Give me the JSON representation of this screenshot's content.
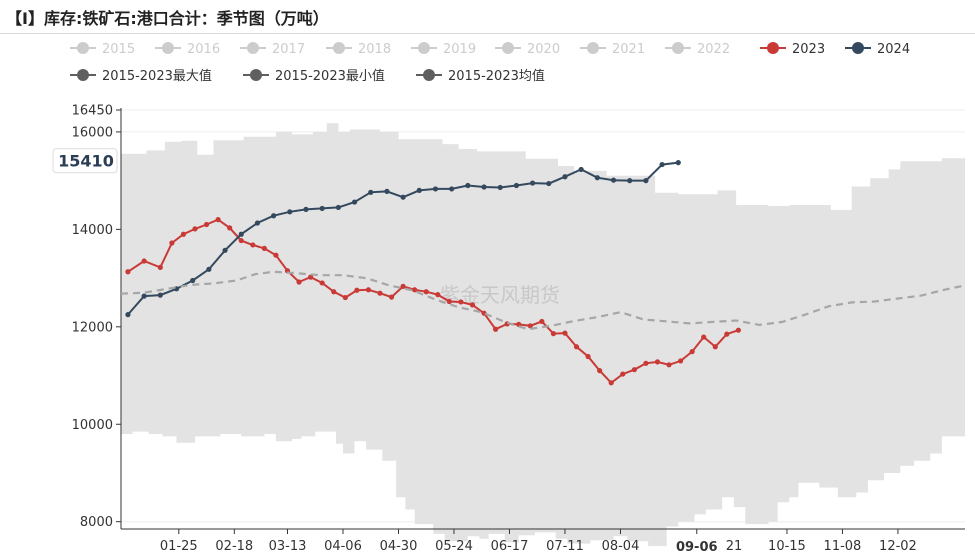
{
  "title": "【I】库存:铁矿石:港口合计：季节图（万吨）",
  "watermark": "紫金天风期货",
  "colors": {
    "band": "#e3e3e3",
    "y2023": "#c93a36",
    "y2024": "#34495e",
    "avg": "#a6a6a6",
    "legend_inactive": "#cccccc",
    "legend_stat": "#5f5f5f",
    "tooltip_text": "#2b3d55"
  },
  "chart_data": {
    "type": "line",
    "title": "【I】库存:铁矿石:港口合计：季节图（万吨）",
    "y_ticks": [
      8000,
      10000,
      12000,
      14000,
      16000,
      16450
    ],
    "ylim": [
      7850,
      16450
    ],
    "x_range_days": [
      0,
      365
    ],
    "x_ticks": [
      "01-25",
      "02-18",
      "03-13",
      "04-06",
      "04-30",
      "05-24",
      "06-17",
      "07-11",
      "08-04",
      "09-06",
      "10-15",
      "11-08",
      "12-02"
    ],
    "x_tick_days": [
      25,
      49,
      72,
      96,
      120,
      144,
      168,
      192,
      216,
      249,
      288,
      312,
      336
    ],
    "highlighted_x": "09-06",
    "partial_tick": "21",
    "partial_tick_day": 265,
    "y_value_marker": 15410,
    "legend": [
      {
        "label": "2015",
        "state": "inactive"
      },
      {
        "label": "2016",
        "state": "inactive"
      },
      {
        "label": "2017",
        "state": "inactive"
      },
      {
        "label": "2018",
        "state": "inactive"
      },
      {
        "label": "2019",
        "state": "inactive"
      },
      {
        "label": "2020",
        "state": "inactive"
      },
      {
        "label": "2021",
        "state": "inactive"
      },
      {
        "label": "2022",
        "state": "inactive"
      },
      {
        "label": "2023",
        "state": "active"
      },
      {
        "label": "2024",
        "state": "active"
      },
      {
        "label": "2015-2023最大值",
        "state": "stat"
      },
      {
        "label": "2015-2023最小值",
        "state": "stat"
      },
      {
        "label": "2015-2023均值",
        "state": "stat"
      }
    ],
    "band_max": [
      [
        0,
        15550
      ],
      [
        11,
        15550
      ],
      [
        11,
        15620
      ],
      [
        19,
        15620
      ],
      [
        19,
        15800
      ],
      [
        26,
        15800
      ],
      [
        26,
        15820
      ],
      [
        33,
        15820
      ],
      [
        33,
        15530
      ],
      [
        40,
        15530
      ],
      [
        40,
        15830
      ],
      [
        53,
        15830
      ],
      [
        53,
        15900
      ],
      [
        67,
        15900
      ],
      [
        67,
        16000
      ],
      [
        74,
        16000
      ],
      [
        74,
        15950
      ],
      [
        83,
        15950
      ],
      [
        83,
        16000
      ],
      [
        89,
        16000
      ],
      [
        89,
        16180
      ],
      [
        94,
        16180
      ],
      [
        94,
        16000
      ],
      [
        99,
        16000
      ],
      [
        99,
        16050
      ],
      [
        112,
        16050
      ],
      [
        112,
        16000
      ],
      [
        120,
        16000
      ],
      [
        120,
        15850
      ],
      [
        139,
        15850
      ],
      [
        139,
        15750
      ],
      [
        146,
        15750
      ],
      [
        146,
        15650
      ],
      [
        154,
        15650
      ],
      [
        154,
        15600
      ],
      [
        175,
        15600
      ],
      [
        175,
        15450
      ],
      [
        189,
        15450
      ],
      [
        189,
        15300
      ],
      [
        196,
        15300
      ],
      [
        196,
        15200
      ],
      [
        210,
        15200
      ],
      [
        210,
        15100
      ],
      [
        231,
        15100
      ],
      [
        231,
        14750
      ],
      [
        241,
        14750
      ],
      [
        241,
        14720
      ],
      [
        258,
        14720
      ],
      [
        258,
        14800
      ],
      [
        266,
        14800
      ],
      [
        266,
        14500
      ],
      [
        280,
        14500
      ],
      [
        280,
        14480
      ],
      [
        289,
        14480
      ],
      [
        289,
        14500
      ],
      [
        307,
        14500
      ],
      [
        307,
        14400
      ],
      [
        316,
        14400
      ],
      [
        316,
        14880
      ],
      [
        324,
        14880
      ],
      [
        324,
        15050
      ],
      [
        332,
        15050
      ],
      [
        332,
        15230
      ],
      [
        337,
        15230
      ],
      [
        337,
        15400
      ],
      [
        355,
        15400
      ],
      [
        355,
        15460
      ],
      [
        365,
        15460
      ]
    ],
    "band_min": [
      [
        0,
        9800
      ],
      [
        5,
        9800
      ],
      [
        5,
        9850
      ],
      [
        12,
        9850
      ],
      [
        12,
        9800
      ],
      [
        18,
        9800
      ],
      [
        18,
        9750
      ],
      [
        24,
        9750
      ],
      [
        24,
        9620
      ],
      [
        32,
        9620
      ],
      [
        32,
        9750
      ],
      [
        43,
        9750
      ],
      [
        43,
        9800
      ],
      [
        52,
        9800
      ],
      [
        52,
        9750
      ],
      [
        62,
        9750
      ],
      [
        62,
        9800
      ],
      [
        67,
        9800
      ],
      [
        67,
        9650
      ],
      [
        74,
        9650
      ],
      [
        74,
        9700
      ],
      [
        78,
        9700
      ],
      [
        78,
        9750
      ],
      [
        84,
        9750
      ],
      [
        84,
        9850
      ],
      [
        93,
        9850
      ],
      [
        93,
        9600
      ],
      [
        96,
        9600
      ],
      [
        96,
        9400
      ],
      [
        101,
        9400
      ],
      [
        101,
        9650
      ],
      [
        106,
        9650
      ],
      [
        106,
        9480
      ],
      [
        113,
        9480
      ],
      [
        113,
        9250
      ],
      [
        119,
        9250
      ],
      [
        119,
        8500
      ],
      [
        123,
        8500
      ],
      [
        123,
        8250
      ],
      [
        127,
        8250
      ],
      [
        127,
        7950
      ],
      [
        135,
        7950
      ],
      [
        135,
        7750
      ],
      [
        140,
        7750
      ],
      [
        140,
        7600
      ],
      [
        150,
        7600
      ],
      [
        150,
        7700
      ],
      [
        155,
        7700
      ],
      [
        155,
        7650
      ],
      [
        159,
        7650
      ],
      [
        159,
        7750
      ],
      [
        166,
        7750
      ],
      [
        166,
        7580
      ],
      [
        172,
        7580
      ],
      [
        172,
        7720
      ],
      [
        179,
        7720
      ],
      [
        179,
        7780
      ],
      [
        188,
        7780
      ],
      [
        188,
        7650
      ],
      [
        193,
        7650
      ],
      [
        193,
        7550
      ],
      [
        203,
        7550
      ],
      [
        203,
        7620
      ],
      [
        213,
        7620
      ],
      [
        213,
        7700
      ],
      [
        219,
        7700
      ],
      [
        219,
        7600
      ],
      [
        228,
        7600
      ],
      [
        228,
        7500
      ],
      [
        236,
        7500
      ],
      [
        236,
        7900
      ],
      [
        241,
        7900
      ],
      [
        241,
        8000
      ],
      [
        248,
        8000
      ],
      [
        248,
        8150
      ],
      [
        253,
        8150
      ],
      [
        253,
        8250
      ],
      [
        260,
        8250
      ],
      [
        260,
        8500
      ],
      [
        265,
        8500
      ],
      [
        265,
        8300
      ],
      [
        270,
        8300
      ],
      [
        270,
        7950
      ],
      [
        280,
        7950
      ],
      [
        280,
        8000
      ],
      [
        284,
        8000
      ],
      [
        284,
        8400
      ],
      [
        289,
        8400
      ],
      [
        289,
        8500
      ],
      [
        293,
        8500
      ],
      [
        293,
        8800
      ],
      [
        302,
        8800
      ],
      [
        302,
        8700
      ],
      [
        310,
        8700
      ],
      [
        310,
        8500
      ],
      [
        318,
        8500
      ],
      [
        318,
        8600
      ],
      [
        323,
        8600
      ],
      [
        323,
        8850
      ],
      [
        330,
        8850
      ],
      [
        330,
        9000
      ],
      [
        337,
        9000
      ],
      [
        337,
        9150
      ],
      [
        343,
        9150
      ],
      [
        343,
        9250
      ],
      [
        350,
        9250
      ],
      [
        350,
        9400
      ],
      [
        355,
        9400
      ],
      [
        355,
        9750
      ],
      [
        365,
        9750
      ]
    ],
    "series": [
      {
        "name": "2023",
        "points": [
          [
            3,
            13130
          ],
          [
            10,
            13350
          ],
          [
            17,
            13220
          ],
          [
            22,
            13720
          ],
          [
            27,
            13900
          ],
          [
            32,
            14010
          ],
          [
            37,
            14100
          ],
          [
            42,
            14200
          ],
          [
            47,
            14030
          ],
          [
            52,
            13770
          ],
          [
            57,
            13680
          ],
          [
            62,
            13610
          ],
          [
            67,
            13470
          ],
          [
            72,
            13150
          ],
          [
            77,
            12920
          ],
          [
            82,
            13020
          ],
          [
            87,
            12900
          ],
          [
            92,
            12720
          ],
          [
            97,
            12600
          ],
          [
            102,
            12750
          ],
          [
            107,
            12760
          ],
          [
            112,
            12690
          ],
          [
            117,
            12610
          ],
          [
            122,
            12830
          ],
          [
            127,
            12760
          ],
          [
            132,
            12720
          ],
          [
            137,
            12660
          ],
          [
            142,
            12520
          ],
          [
            147,
            12510
          ],
          [
            152,
            12450
          ],
          [
            157,
            12280
          ],
          [
            162,
            11950
          ],
          [
            167,
            12060
          ],
          [
            172,
            12050
          ],
          [
            177,
            12020
          ],
          [
            182,
            12110
          ],
          [
            187,
            11860
          ],
          [
            192,
            11870
          ],
          [
            197,
            11590
          ],
          [
            202,
            11390
          ],
          [
            207,
            11100
          ],
          [
            212,
            10850
          ],
          [
            217,
            11030
          ],
          [
            222,
            11120
          ],
          [
            227,
            11250
          ],
          [
            232,
            11280
          ],
          [
            237,
            11220
          ],
          [
            242,
            11300
          ],
          [
            247,
            11490
          ],
          [
            252,
            11790
          ],
          [
            257,
            11590
          ],
          [
            262,
            11850
          ],
          [
            267,
            11930
          ]
        ]
      },
      {
        "name": "2024",
        "points": [
          [
            3,
            12250
          ],
          [
            10,
            12630
          ],
          [
            17,
            12650
          ],
          [
            24,
            12780
          ],
          [
            31,
            12950
          ],
          [
            38,
            13180
          ],
          [
            45,
            13570
          ],
          [
            52,
            13900
          ],
          [
            59,
            14130
          ],
          [
            66,
            14280
          ],
          [
            73,
            14360
          ],
          [
            80,
            14410
          ],
          [
            87,
            14430
          ],
          [
            94,
            14450
          ],
          [
            101,
            14560
          ],
          [
            108,
            14760
          ],
          [
            115,
            14780
          ],
          [
            122,
            14660
          ],
          [
            129,
            14800
          ],
          [
            136,
            14830
          ],
          [
            143,
            14830
          ],
          [
            150,
            14900
          ],
          [
            157,
            14870
          ],
          [
            164,
            14860
          ],
          [
            171,
            14900
          ],
          [
            178,
            14950
          ],
          [
            185,
            14940
          ],
          [
            192,
            15080
          ],
          [
            199,
            15230
          ],
          [
            206,
            15060
          ],
          [
            213,
            15010
          ],
          [
            220,
            15000
          ],
          [
            227,
            15000
          ],
          [
            234,
            15330
          ],
          [
            241,
            15370
          ]
        ]
      },
      {
        "name": "2015-2023均值",
        "points": [
          [
            0,
            12680
          ],
          [
            10,
            12700
          ],
          [
            20,
            12780
          ],
          [
            30,
            12860
          ],
          [
            40,
            12890
          ],
          [
            50,
            12950
          ],
          [
            58,
            13080
          ],
          [
            66,
            13130
          ],
          [
            76,
            13100
          ],
          [
            86,
            13060
          ],
          [
            96,
            13060
          ],
          [
            106,
            13000
          ],
          [
            116,
            12850
          ],
          [
            126,
            12750
          ],
          [
            136,
            12560
          ],
          [
            146,
            12400
          ],
          [
            156,
            12300
          ],
          [
            166,
            12100
          ],
          [
            176,
            11950
          ],
          [
            186,
            12020
          ],
          [
            196,
            12120
          ],
          [
            206,
            12200
          ],
          [
            216,
            12300
          ],
          [
            226,
            12150
          ],
          [
            236,
            12110
          ],
          [
            246,
            12070
          ],
          [
            256,
            12100
          ],
          [
            266,
            12130
          ],
          [
            276,
            12040
          ],
          [
            286,
            12100
          ],
          [
            296,
            12250
          ],
          [
            306,
            12420
          ],
          [
            316,
            12500
          ],
          [
            326,
            12520
          ],
          [
            336,
            12580
          ],
          [
            346,
            12640
          ],
          [
            356,
            12760
          ],
          [
            365,
            12850
          ]
        ]
      }
    ]
  }
}
